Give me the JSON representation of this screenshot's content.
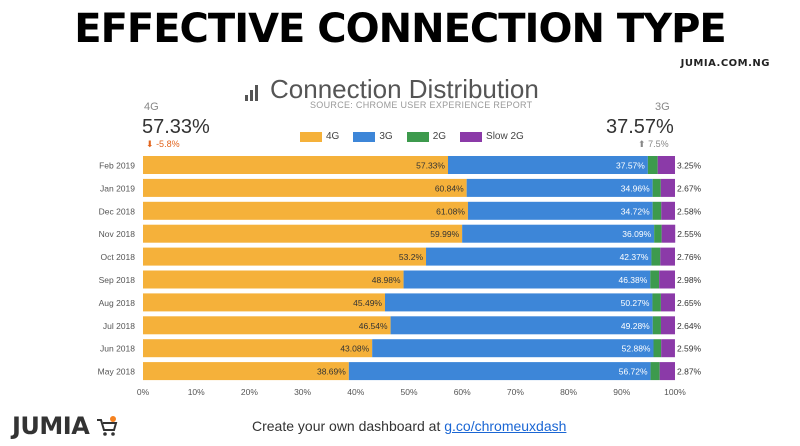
{
  "slide": {
    "headline": "EFFECTIVE CONNECTION TYPE",
    "site": "JUMIA.COM.NG",
    "logo": "JUMIA",
    "cta_text": "Create your own dashboard at ",
    "cta_link": "g.co/chromeuxdash"
  },
  "chart_header": {
    "title": "Connection Distribution",
    "source": "SOURCE: CHROME USER EXPERIENCE REPORT",
    "kpi_left": {
      "label": "4G",
      "value": "57.33%",
      "delta": "-5.8%"
    },
    "kpi_right": {
      "label": "3G",
      "value": "37.57%",
      "delta": "7.5%"
    }
  },
  "colors": {
    "4G": "#f5b13a",
    "3G": "#3d86d8",
    "2G": "#3d9a4d",
    "Slow 2G": "#8b3aa8"
  },
  "chart_data": {
    "type": "bar",
    "orientation": "horizontal",
    "stacked": true,
    "categories": [
      "Feb 2019",
      "Jan 2019",
      "Dec 2018",
      "Nov 2018",
      "Oct 2018",
      "Sep 2018",
      "Aug 2018",
      "Jul 2018",
      "Jun 2018",
      "May 2018"
    ],
    "series": [
      {
        "name": "4G",
        "values": [
          57.33,
          60.84,
          61.08,
          59.99,
          53.2,
          48.98,
          45.49,
          46.54,
          43.08,
          38.69
        ],
        "labels": [
          "57.33%",
          "60.84%",
          "61.08%",
          "59.99%",
          "53.2%",
          "48.98%",
          "45.49%",
          "46.54%",
          "43.08%",
          "38.69%"
        ]
      },
      {
        "name": "3G",
        "values": [
          37.57,
          34.96,
          34.72,
          36.09,
          42.37,
          46.38,
          50.27,
          49.28,
          52.88,
          56.72
        ],
        "labels": [
          "37.57%",
          "34.96%",
          "34.72%",
          "36.09%",
          "42.37%",
          "46.38%",
          "50.27%",
          "49.28%",
          "52.88%",
          "56.72%"
        ]
      },
      {
        "name": "2G",
        "values": [
          1.85,
          1.53,
          1.62,
          1.41,
          1.67,
          1.66,
          1.59,
          1.54,
          1.44,
          1.72
        ]
      },
      {
        "name": "Slow 2G",
        "values": [
          3.25,
          2.67,
          2.58,
          2.55,
          2.76,
          2.98,
          2.65,
          2.64,
          2.59,
          2.87
        ],
        "labels": [
          "3.25%",
          "2.67%",
          "2.58%",
          "2.55%",
          "2.76%",
          "2.98%",
          "2.65%",
          "2.64%",
          "2.59%",
          "2.87%"
        ]
      }
    ],
    "xlim": [
      0,
      100
    ],
    "xticks": [
      "0%",
      "10%",
      "20%",
      "30%",
      "40%",
      "50%",
      "60%",
      "70%",
      "80%",
      "90%",
      "100%"
    ],
    "legend": "top-center",
    "grid": false
  }
}
